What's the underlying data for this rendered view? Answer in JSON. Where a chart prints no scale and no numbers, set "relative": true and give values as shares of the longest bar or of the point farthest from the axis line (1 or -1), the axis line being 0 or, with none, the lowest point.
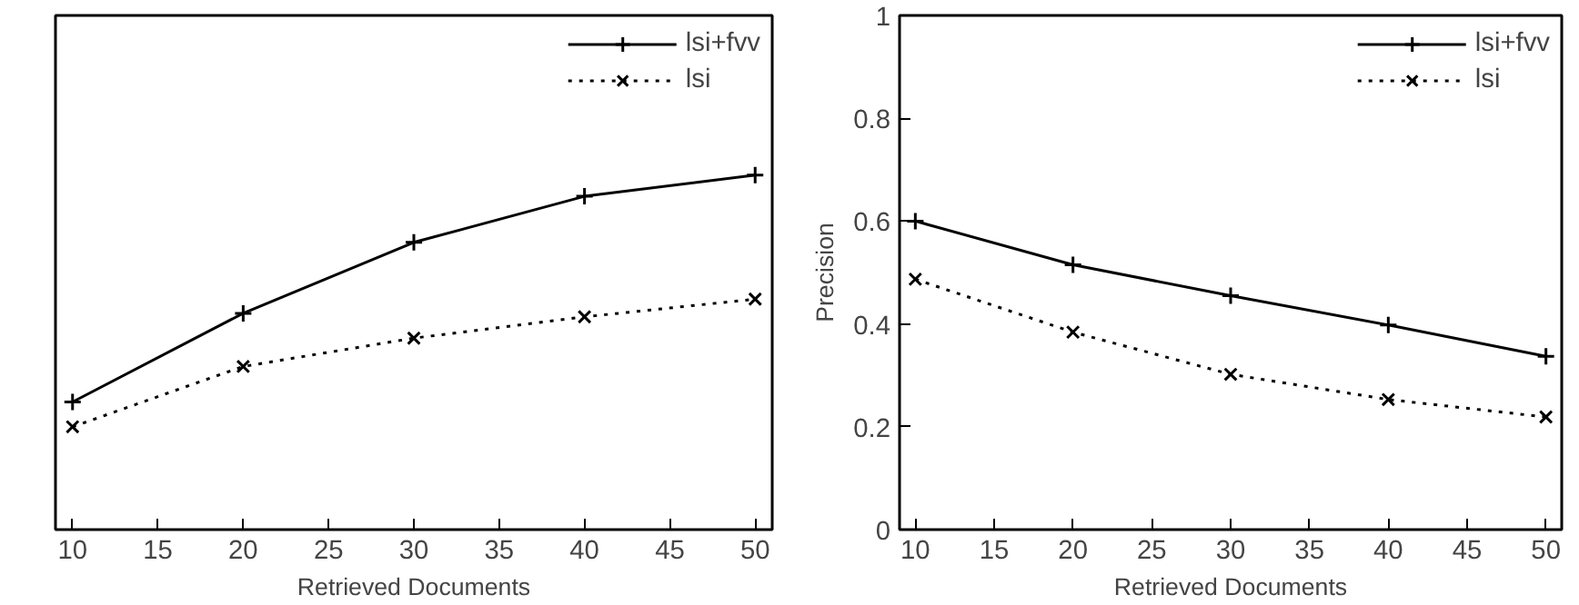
{
  "chart_data": [
    {
      "type": "line",
      "xlabel": "Retrieved Documents",
      "x": [
        10,
        20,
        30,
        40,
        50
      ],
      "xlim": [
        9,
        51
      ],
      "xticks": [
        10,
        15,
        20,
        25,
        30,
        35,
        40,
        45,
        50
      ],
      "relative": true,
      "tick_labels": "x",
      "legend": "top right",
      "grid": false,
      "series": [
        {
          "name": "lsi+fvv",
          "color": "#000000",
          "marker": "cross",
          "line_style": "solid",
          "values": [
            0.36,
            0.61,
            0.81,
            0.94,
            1
          ]
        },
        {
          "name": "lsi",
          "color": "#000000",
          "marker": "x",
          "line_style": "dotted",
          "values": [
            0.29,
            0.46,
            0.54,
            0.6,
            0.65
          ]
        }
      ]
    },
    {
      "type": "line",
      "xlabel": "Retrieved Documents",
      "ylabel": "Precision",
      "x": [
        10,
        20,
        30,
        40,
        50
      ],
      "xlim": [
        9,
        51
      ],
      "xticks": [
        10,
        15,
        20,
        25,
        30,
        35,
        40,
        45,
        50
      ],
      "ylim": [
        0,
        1
      ],
      "yticks": [
        0,
        0.2,
        0.4,
        0.6,
        0.8,
        1
      ],
      "legend": "top right",
      "grid": false,
      "series": [
        {
          "name": "lsi+fvv",
          "color": "#000000",
          "marker": "cross",
          "line_style": "solid",
          "values": [
            0.6,
            0.515,
            0.455,
            0.398,
            0.337
          ]
        },
        {
          "name": "lsi",
          "color": "#000000",
          "marker": "x",
          "line_style": "dotted",
          "values": [
            0.487,
            0.384,
            0.302,
            0.253,
            0.219
          ]
        }
      ]
    }
  ]
}
